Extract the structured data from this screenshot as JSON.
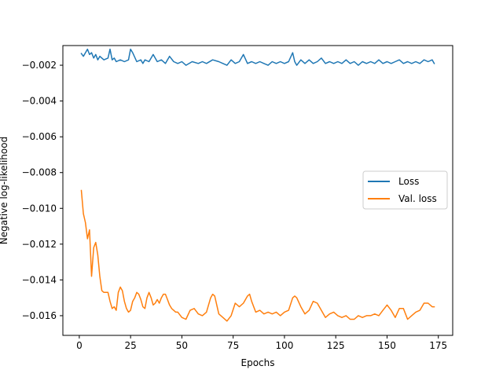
{
  "chart_data": {
    "type": "line",
    "xlabel": "Epochs",
    "ylabel": "Negative log-likelihood",
    "xlim": [
      -8,
      182
    ],
    "ylim": [
      -0.0171,
      -0.0009
    ],
    "x_ticks": [
      0,
      25,
      50,
      75,
      100,
      125,
      150,
      175
    ],
    "x_tick_labels": [
      "0",
      "25",
      "50",
      "75",
      "100",
      "125",
      "150",
      "175"
    ],
    "y_ticks": [
      -0.016,
      -0.014,
      -0.012,
      -0.01,
      -0.008,
      -0.006,
      -0.004,
      -0.002
    ],
    "y_tick_labels": [
      "−0.016",
      "−0.014",
      "−0.012",
      "−0.010",
      "−0.008",
      "−0.006",
      "−0.004",
      "−0.002"
    ],
    "grid": false,
    "legend_position": "center-right",
    "series": [
      {
        "name": "Loss",
        "color": "#1f77b4",
        "x": [
          1,
          2,
          4,
          5,
          6,
          7,
          8,
          9,
          10,
          12,
          14,
          15,
          16,
          17,
          18,
          20,
          22,
          24,
          25,
          26,
          28,
          30,
          31,
          32,
          34,
          36,
          38,
          40,
          42,
          44,
          46,
          48,
          50,
          52,
          55,
          58,
          60,
          62,
          65,
          68,
          70,
          72,
          74,
          76,
          78,
          80,
          82,
          84,
          86,
          88,
          90,
          92,
          94,
          96,
          98,
          100,
          102,
          104,
          105,
          106,
          108,
          110,
          112,
          114,
          116,
          118,
          120,
          122,
          124,
          126,
          128,
          130,
          132,
          134,
          136,
          138,
          140,
          142,
          144,
          146,
          148,
          150,
          152,
          154,
          156,
          158,
          160,
          162,
          164,
          166,
          168,
          170,
          172,
          173
        ],
        "values": [
          -0.00135,
          -0.0015,
          -0.0011,
          -0.0014,
          -0.0013,
          -0.0016,
          -0.0014,
          -0.0017,
          -0.0015,
          -0.0017,
          -0.0016,
          -0.0011,
          -0.0017,
          -0.0016,
          -0.0018,
          -0.0017,
          -0.0018,
          -0.0017,
          -0.0011,
          -0.0013,
          -0.0018,
          -0.0017,
          -0.0019,
          -0.0017,
          -0.0018,
          -0.0014,
          -0.0018,
          -0.0017,
          -0.0019,
          -0.0015,
          -0.0018,
          -0.0019,
          -0.0018,
          -0.002,
          -0.0018,
          -0.0019,
          -0.0018,
          -0.0019,
          -0.0017,
          -0.0018,
          -0.0019,
          -0.002,
          -0.0017,
          -0.0019,
          -0.0018,
          -0.0014,
          -0.0019,
          -0.0018,
          -0.0019,
          -0.0018,
          -0.0019,
          -0.002,
          -0.0018,
          -0.0019,
          -0.0018,
          -0.0019,
          -0.0018,
          -0.0013,
          -0.0018,
          -0.002,
          -0.0017,
          -0.0019,
          -0.0017,
          -0.0019,
          -0.0018,
          -0.0016,
          -0.0019,
          -0.0018,
          -0.0019,
          -0.0018,
          -0.0019,
          -0.0017,
          -0.0019,
          -0.0018,
          -0.002,
          -0.0018,
          -0.0019,
          -0.0018,
          -0.0019,
          -0.0017,
          -0.0019,
          -0.0018,
          -0.0019,
          -0.0018,
          -0.0017,
          -0.0019,
          -0.0018,
          -0.0019,
          -0.0018,
          -0.0019,
          -0.0017,
          -0.0018,
          -0.0017,
          -0.0019
        ]
      },
      {
        "name": "Val. loss",
        "color": "#ff7f0e",
        "x": [
          1,
          2,
          3,
          4,
          5,
          6,
          7,
          8,
          9,
          10,
          11,
          12,
          14,
          15,
          16,
          17,
          18,
          19,
          20,
          21,
          22,
          23,
          24,
          25,
          26,
          27,
          28,
          29,
          30,
          31,
          32,
          33,
          34,
          35,
          36,
          37,
          38,
          39,
          40,
          41,
          42,
          43,
          44,
          45,
          46,
          47,
          48,
          50,
          52,
          54,
          56,
          58,
          60,
          62,
          64,
          65,
          66,
          68,
          70,
          72,
          74,
          76,
          78,
          80,
          82,
          83,
          84,
          86,
          88,
          90,
          92,
          94,
          96,
          98,
          100,
          102,
          104,
          105,
          106,
          108,
          110,
          112,
          114,
          116,
          118,
          120,
          122,
          124,
          126,
          128,
          130,
          132,
          134,
          136,
          138,
          140,
          142,
          144,
          146,
          148,
          150,
          152,
          154,
          156,
          158,
          160,
          162,
          164,
          166,
          168,
          170,
          172,
          173
        ],
        "values": [
          -0.009,
          -0.0103,
          -0.0108,
          -0.0117,
          -0.0112,
          -0.0138,
          -0.0122,
          -0.0119,
          -0.0126,
          -0.0138,
          -0.0146,
          -0.0147,
          -0.0147,
          -0.0152,
          -0.0156,
          -0.0155,
          -0.0157,
          -0.0147,
          -0.0144,
          -0.0146,
          -0.0152,
          -0.0156,
          -0.0158,
          -0.0157,
          -0.0152,
          -0.015,
          -0.0147,
          -0.0148,
          -0.0151,
          -0.0155,
          -0.0156,
          -0.015,
          -0.0147,
          -0.015,
          -0.0154,
          -0.0153,
          -0.0151,
          -0.0153,
          -0.015,
          -0.0148,
          -0.0148,
          -0.0151,
          -0.0154,
          -0.0156,
          -0.0157,
          -0.0158,
          -0.0158,
          -0.0161,
          -0.0162,
          -0.0157,
          -0.0156,
          -0.0159,
          -0.016,
          -0.0158,
          -0.015,
          -0.0148,
          -0.0149,
          -0.0159,
          -0.0161,
          -0.0163,
          -0.016,
          -0.0153,
          -0.0155,
          -0.0153,
          -0.0149,
          -0.0148,
          -0.0152,
          -0.0158,
          -0.0157,
          -0.0159,
          -0.0158,
          -0.0159,
          -0.0158,
          -0.016,
          -0.0158,
          -0.0157,
          -0.015,
          -0.0149,
          -0.015,
          -0.0155,
          -0.0159,
          -0.0157,
          -0.0152,
          -0.0153,
          -0.0157,
          -0.0161,
          -0.0159,
          -0.0158,
          -0.016,
          -0.0161,
          -0.016,
          -0.0162,
          -0.0162,
          -0.016,
          -0.0161,
          -0.016,
          -0.016,
          -0.0159,
          -0.016,
          -0.0157,
          -0.0154,
          -0.0157,
          -0.0161,
          -0.0156,
          -0.0156,
          -0.0162,
          -0.016,
          -0.0158,
          -0.0157,
          -0.0153,
          -0.0153,
          -0.0155,
          -0.0155
        ]
      }
    ]
  }
}
